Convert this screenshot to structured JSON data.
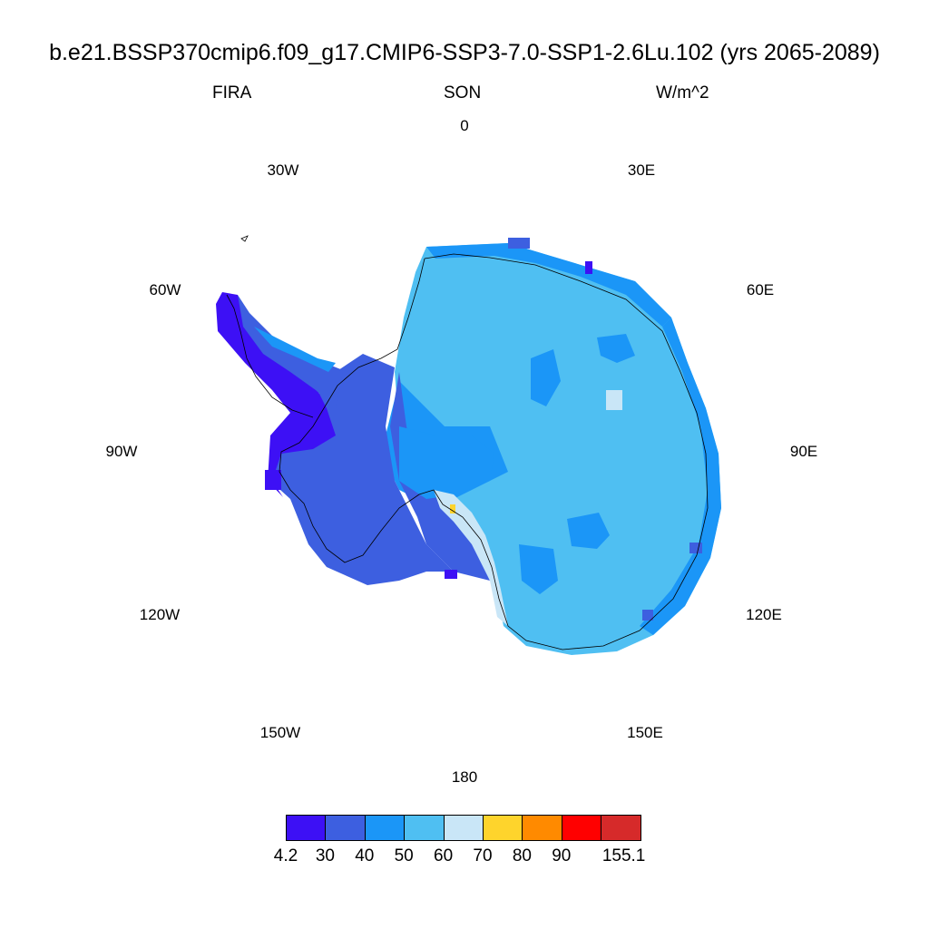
{
  "title": "b.e21.BSSP370cmip6.f09_g17.CMIP6-SSP3-7.0-SSP1-2.6Lu.102 (yrs 2065-2089)",
  "left_subtitle": "FIRA",
  "center_subtitle": "SON",
  "right_subtitle": "W/m^2",
  "longitude_labels": [
    "0",
    "30E",
    "60E",
    "90E",
    "120E",
    "150E",
    "180",
    "150W",
    "120W",
    "90W",
    "60W",
    "30W"
  ],
  "projection": "south-polar-stereographic",
  "colorbar": {
    "colors": [
      "#3d10f5",
      "#3d5fe0",
      "#1b96f7",
      "#4fbff2",
      "#c9e6f7",
      "#fed42c",
      "#ff8a00",
      "#ff0000",
      "#d62a2a"
    ],
    "labels": [
      "4.2",
      "30",
      "40",
      "50",
      "60",
      "70",
      "80",
      "90",
      "155.1"
    ]
  }
}
